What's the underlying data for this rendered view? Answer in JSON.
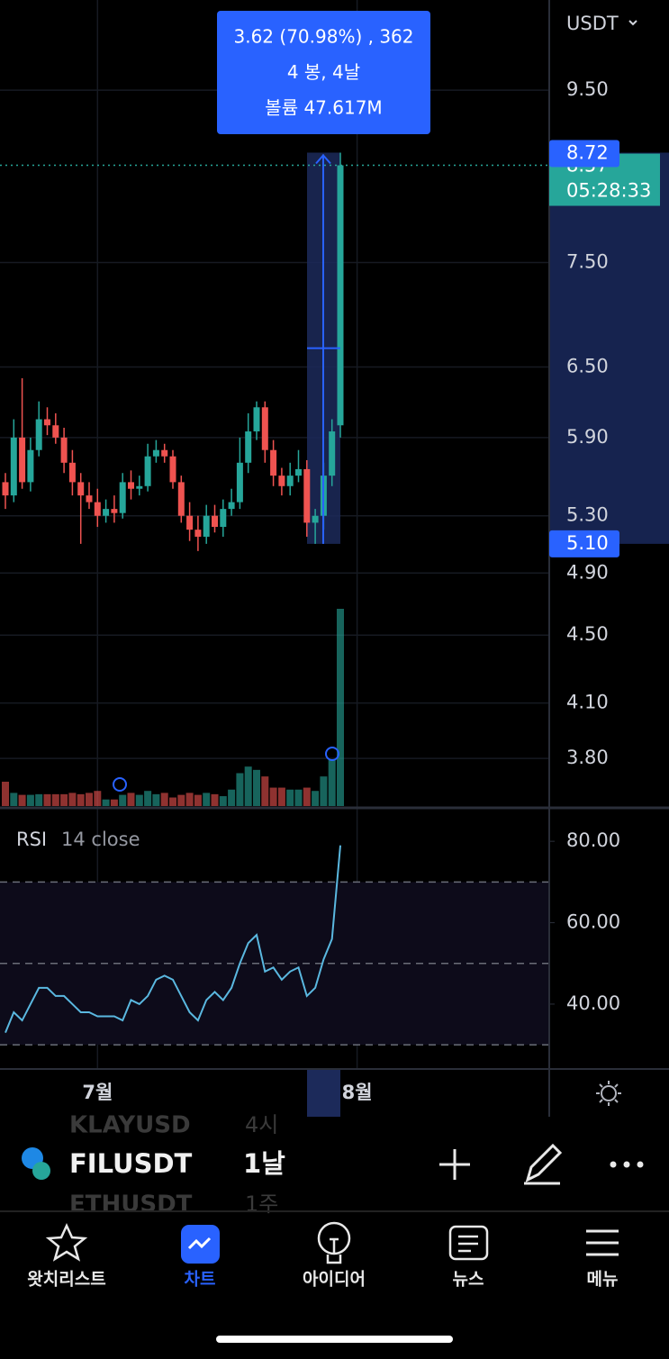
{
  "header": {
    "currency": "USDT"
  },
  "chart_data": [
    {
      "type": "candlestick",
      "x": [
        null,
        null,
        null,
        null,
        null,
        null,
        null,
        null,
        null,
        null,
        null,
        "7월",
        null,
        null,
        null,
        null,
        null,
        null,
        null,
        null,
        null,
        null,
        null,
        null,
        null,
        null,
        null,
        null,
        null,
        null,
        null,
        null,
        null,
        null,
        null,
        null,
        null,
        null,
        null,
        null,
        null,
        null,
        "8월"
      ],
      "open": [
        5.55,
        5.45,
        5.9,
        5.55,
        5.8,
        6.05,
        6.0,
        5.9,
        5.7,
        5.55,
        5.45,
        5.4,
        5.3,
        5.35,
        5.32,
        5.55,
        5.5,
        5.52,
        5.75,
        5.8,
        5.75,
        5.55,
        5.3,
        5.2,
        5.15,
        5.3,
        5.22,
        5.35,
        5.4,
        5.7,
        5.95,
        6.15,
        5.8,
        5.6,
        5.52,
        5.6,
        5.65,
        5.25,
        5.3,
        5.6,
        6.0,
        null,
        null
      ],
      "high": [
        5.62,
        6.05,
        6.4,
        5.9,
        6.2,
        6.15,
        6.1,
        5.98,
        5.8,
        5.62,
        5.55,
        5.5,
        5.42,
        5.45,
        5.62,
        5.64,
        5.6,
        5.85,
        5.88,
        5.85,
        5.8,
        5.6,
        5.4,
        5.3,
        5.38,
        5.38,
        5.42,
        5.5,
        5.9,
        6.1,
        6.2,
        6.2,
        5.88,
        5.66,
        5.7,
        5.8,
        5.72,
        5.35,
        5.7,
        6.05,
        8.72,
        null,
        null
      ],
      "low": [
        5.35,
        5.4,
        5.5,
        5.48,
        5.75,
        5.92,
        5.85,
        5.62,
        5.45,
        5.1,
        5.35,
        5.22,
        5.25,
        5.25,
        5.28,
        5.42,
        5.45,
        5.48,
        5.7,
        5.7,
        5.5,
        5.25,
        5.12,
        5.05,
        5.1,
        5.18,
        5.15,
        5.3,
        5.35,
        5.62,
        5.88,
        5.7,
        5.52,
        5.45,
        5.45,
        5.55,
        5.15,
        5.1,
        5.2,
        5.52,
        5.9,
        null,
        null
      ],
      "close": [
        5.45,
        5.9,
        5.55,
        5.8,
        6.05,
        6.0,
        5.9,
        5.7,
        5.55,
        5.45,
        5.4,
        5.3,
        5.35,
        5.32,
        5.55,
        5.5,
        5.52,
        5.75,
        5.8,
        5.75,
        5.55,
        5.3,
        5.2,
        5.15,
        5.3,
        5.22,
        5.35,
        5.4,
        5.7,
        5.95,
        6.15,
        5.8,
        5.6,
        5.52,
        5.6,
        5.65,
        5.25,
        5.3,
        5.6,
        5.95,
        8.57,
        null,
        null
      ],
      "ylim": [
        3.56,
        10.75
      ],
      "log_scale": true,
      "yticks": [
        {
          "value": 9.5,
          "label": "9.50"
        },
        {
          "value": 7.5,
          "label": "7.50"
        },
        {
          "value": 6.5,
          "label": "6.50"
        },
        {
          "value": 5.9,
          "label": "5.90"
        },
        {
          "value": 5.3,
          "label": "5.30"
        },
        {
          "value": 4.9,
          "label": "4.90"
        },
        {
          "value": 4.5,
          "label": "4.50"
        },
        {
          "value": 4.1,
          "label": "4.10"
        },
        {
          "value": 3.8,
          "label": "3.80"
        }
      ],
      "up_color": "#26a69a",
      "down_color": "#ef5350",
      "last_price": 8.57,
      "countdown": "05:28:33",
      "measure": {
        "high": 8.72,
        "low": {
          "value": 5.1,
          "label": "5.10"
        },
        "change": "3.62 (70.98%) , 362",
        "bars": "4 봉, 4날",
        "volume": "볼륨 47.617M"
      }
    },
    {
      "type": "bar",
      "values": [
        3.7,
        2.0,
        1.7,
        1.7,
        1.8,
        1.8,
        1.8,
        1.8,
        2.0,
        1.8,
        2.0,
        2.3,
        1.0,
        1.0,
        1.7,
        2.0,
        1.7,
        2.3,
        1.8,
        2.0,
        1.3,
        1.7,
        2.0,
        1.7,
        2.0,
        1.8,
        1.5,
        2.5,
        5.0,
        6.0,
        5.5,
        4.5,
        2.8,
        2.8,
        2.5,
        2.5,
        2.8,
        2.3,
        4.5,
        7.0,
        30.0,
        null,
        null
      ]
    },
    {
      "type": "line",
      "title": "RSI",
      "subtitle": "14 close",
      "color": "#5ab8e0",
      "values": [
        33,
        38,
        36,
        40,
        44,
        44,
        42,
        42,
        40,
        38,
        38,
        37,
        37,
        37,
        36,
        41,
        40,
        42,
        46,
        47,
        46,
        42,
        38,
        36,
        41,
        43,
        41,
        44,
        50,
        55,
        57,
        48,
        49,
        46,
        48,
        49,
        42,
        44,
        51,
        56,
        79,
        null,
        null
      ],
      "ylim": [
        24.5,
        88
      ],
      "yticks": [
        {
          "value": 80,
          "label": "80.00"
        },
        {
          "value": 60,
          "label": "60.00"
        },
        {
          "value": 40,
          "label": "40.00"
        }
      ],
      "levels": [
        30,
        50,
        70
      ]
    }
  ],
  "symbol_bar": {
    "symbol": "FILUSDT",
    "interval": "1날",
    "ghost_rows": [
      [
        "KLAYUSD",
        "4시"
      ],
      [
        "ETHUSDT",
        "1주"
      ]
    ]
  },
  "tabs": [
    {
      "label": "왓치리스트"
    },
    {
      "label": "차트"
    },
    {
      "label": "아이디어"
    },
    {
      "label": "뉴스"
    },
    {
      "label": "메뉴"
    }
  ]
}
